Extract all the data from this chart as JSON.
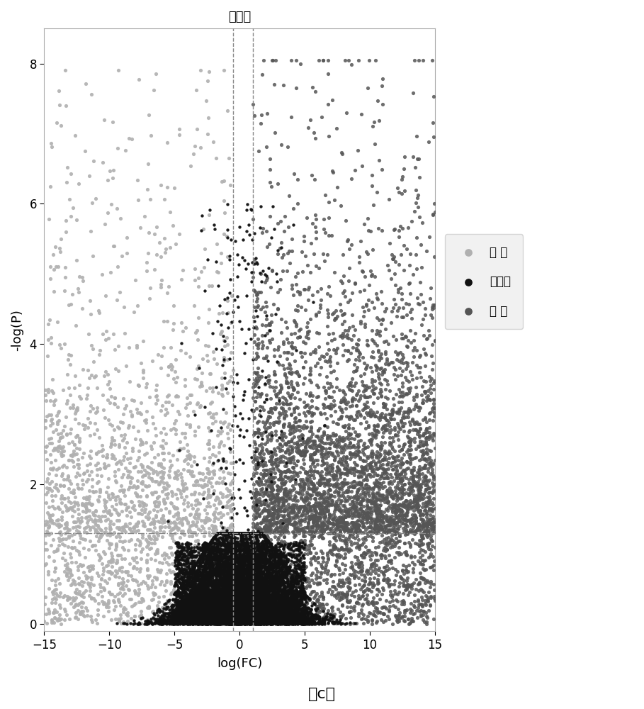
{
  "title": "钾胁迫",
  "xlabel": "log(FC)",
  "ylabel": "-log(P)",
  "caption": "（c）",
  "xlim": [
    -15,
    15
  ],
  "ylim": [
    -0.1,
    8.5
  ],
  "xticks": [
    -15,
    -10,
    -5,
    0,
    5,
    10,
    15
  ],
  "yticks": [
    0,
    2,
    4,
    6,
    8
  ],
  "hline_y": 1.3,
  "vline_x1": -0.5,
  "vline_x2": 1.0,
  "color_down": "#b0b0b0",
  "color_nochange": "#111111",
  "color_up": "#555555",
  "background_color": "#ffffff",
  "legend_labels": [
    "下 调",
    "无变化",
    "上 调"
  ],
  "legend_colors": [
    "#b0b0b0",
    "#111111",
    "#555555"
  ],
  "seed": 42
}
